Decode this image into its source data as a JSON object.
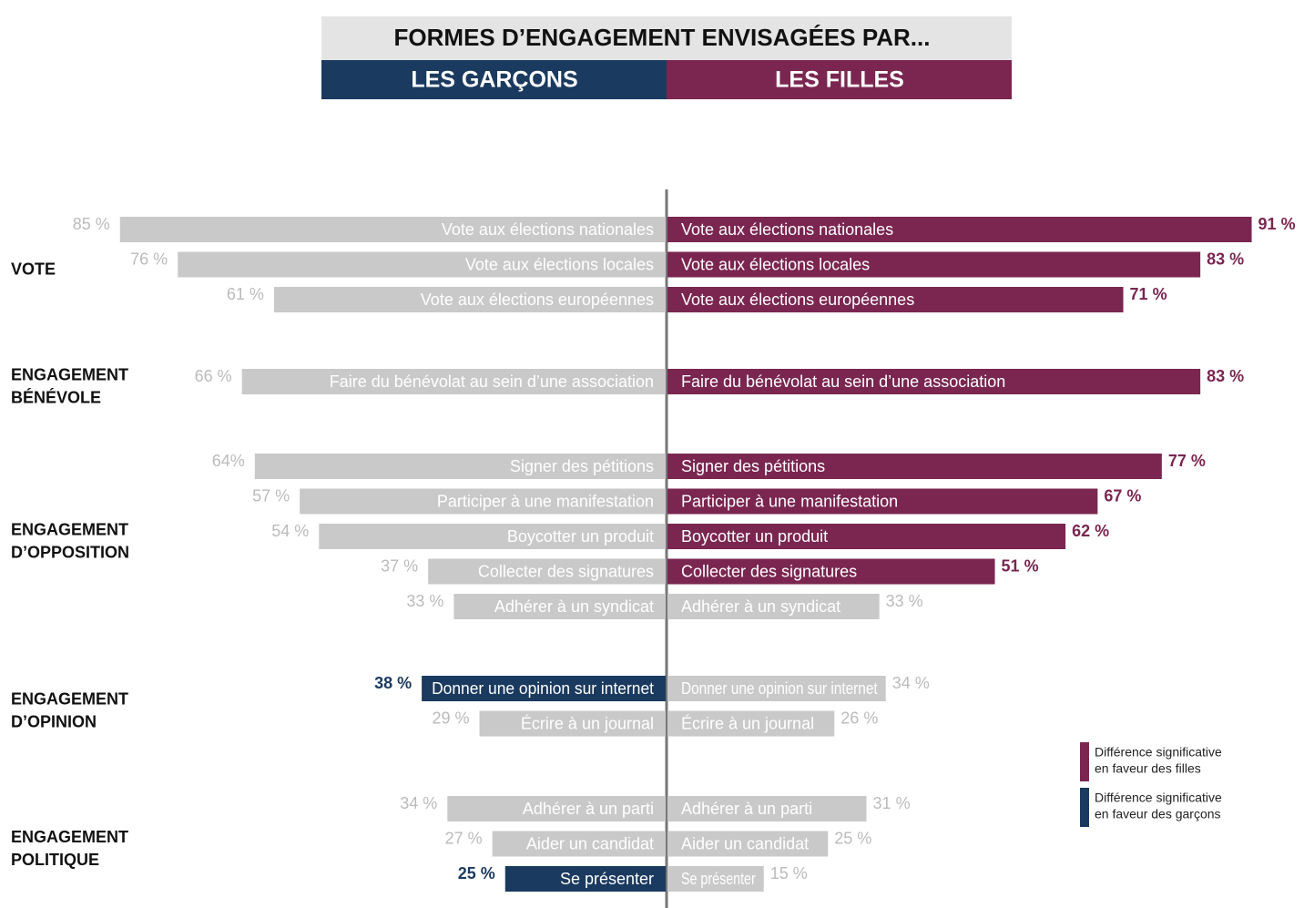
{
  "chart_data": {
    "type": "butterfly",
    "title": "FORMES D’ENGAGEMENT ENVISAGÉES PAR...",
    "neutral_color": "#c9c9c9",
    "series": [
      {
        "name": "LES GARÇONS",
        "color": "#1b3a5f"
      },
      {
        "name": "LES FILLES",
        "color": "#7a2650"
      }
    ],
    "groups": [
      {
        "label": [
          "VOTE"
        ],
        "categories": [
          "Vote aux élections nationales",
          "Vote aux élections locales",
          "Vote aux élections européennes"
        ],
        "values": [
          [
            85,
            76,
            61
          ],
          [
            91,
            83,
            71
          ]
        ],
        "value_labels": [
          [
            "85 %",
            "76 %",
            "61 %"
          ],
          [
            "91 %",
            "83 %",
            "71 %"
          ]
        ],
        "significant": [
          [
            false,
            false,
            false
          ],
          [
            true,
            true,
            true
          ]
        ]
      },
      {
        "label": [
          "ENGAGEMENT",
          "BÉNÉVOLE"
        ],
        "categories": [
          "Faire du bénévolat au sein d’une association"
        ],
        "values": [
          [
            66
          ],
          [
            83
          ]
        ],
        "value_labels": [
          [
            "66 %"
          ],
          [
            "83 %"
          ]
        ],
        "significant": [
          [
            false
          ],
          [
            true
          ]
        ]
      },
      {
        "label": [
          "ENGAGEMENT",
          "D’OPPOSITION"
        ],
        "categories": [
          "Signer des pétitions",
          "Participer à une manifestation",
          "Boycotter un produit",
          "Collecter des signatures",
          "Adhérer à un syndicat"
        ],
        "values": [
          [
            64,
            57,
            54,
            37,
            33
          ],
          [
            77,
            67,
            62,
            51,
            33
          ]
        ],
        "value_labels": [
          [
            "64%",
            "57 %",
            "54 %",
            "37 %",
            "33 %"
          ],
          [
            "77 %",
            "67 %",
            "62 %",
            "51 %",
            "33 %"
          ]
        ],
        "significant": [
          [
            false,
            false,
            false,
            false,
            false
          ],
          [
            true,
            true,
            true,
            true,
            false
          ]
        ]
      },
      {
        "label": [
          "ENGAGEMENT",
          "D’OPINION"
        ],
        "categories": [
          "Donner une opinion sur internet",
          "Écrire à un journal"
        ],
        "values": [
          [
            38,
            29
          ],
          [
            34,
            26
          ]
        ],
        "value_labels": [
          [
            "38 %",
            "29 %"
          ],
          [
            "34 %",
            "26 %"
          ]
        ],
        "significant": [
          [
            true,
            false
          ],
          [
            false,
            false
          ]
        ]
      },
      {
        "label": [
          "ENGAGEMENT",
          "POLITIQUE"
        ],
        "categories": [
          "Adhérer à un parti",
          "Aider un candidat",
          "Se présenter"
        ],
        "values": [
          [
            34,
            27,
            25
          ],
          [
            31,
            25,
            15
          ]
        ],
        "value_labels": [
          [
            "34 %",
            "27 %",
            "25 %"
          ],
          [
            "31 %",
            "25 %",
            "15 %"
          ]
        ],
        "significant": [
          [
            false,
            false,
            true
          ],
          [
            false,
            false,
            false
          ]
        ]
      }
    ],
    "legend": [
      {
        "label": [
          "Différence significative",
          "en faveur des filles"
        ],
        "color": "#7a2650"
      },
      {
        "label": [
          "Différence significative",
          "en faveur des garçons"
        ],
        "color": "#1b3a5f"
      }
    ]
  }
}
